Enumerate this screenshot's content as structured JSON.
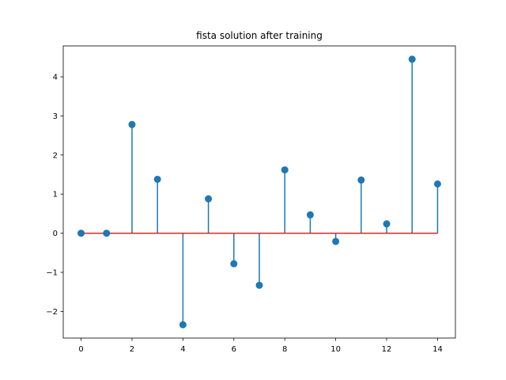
{
  "chart_data": {
    "type": "stem",
    "title": "fista solution after training",
    "xlabel": "",
    "ylabel": "",
    "x": [
      0,
      1,
      2,
      3,
      4,
      5,
      6,
      7,
      8,
      9,
      10,
      11,
      12,
      13,
      14
    ],
    "values": [
      0.0,
      0.0,
      2.78,
      1.38,
      -2.34,
      0.88,
      -0.78,
      -1.33,
      1.62,
      0.47,
      -0.21,
      1.36,
      0.24,
      4.45,
      1.26
    ],
    "xlim": [
      -0.7,
      14.7
    ],
    "ylim": [
      -2.68,
      4.79
    ],
    "xticks": [
      0,
      2,
      4,
      6,
      8,
      10,
      12,
      14
    ],
    "xtick_labels": [
      "0",
      "2",
      "4",
      "6",
      "8",
      "10",
      "12",
      "14"
    ],
    "yticks": [
      -2,
      -1,
      0,
      1,
      2,
      3,
      4
    ],
    "ytick_labels": [
      "−2",
      "−1",
      "0",
      "1",
      "2",
      "3",
      "4"
    ],
    "grid": false,
    "colors": {
      "stem": "#1f77b4",
      "marker": "#1f77b4",
      "baseline": "#d62728"
    }
  }
}
